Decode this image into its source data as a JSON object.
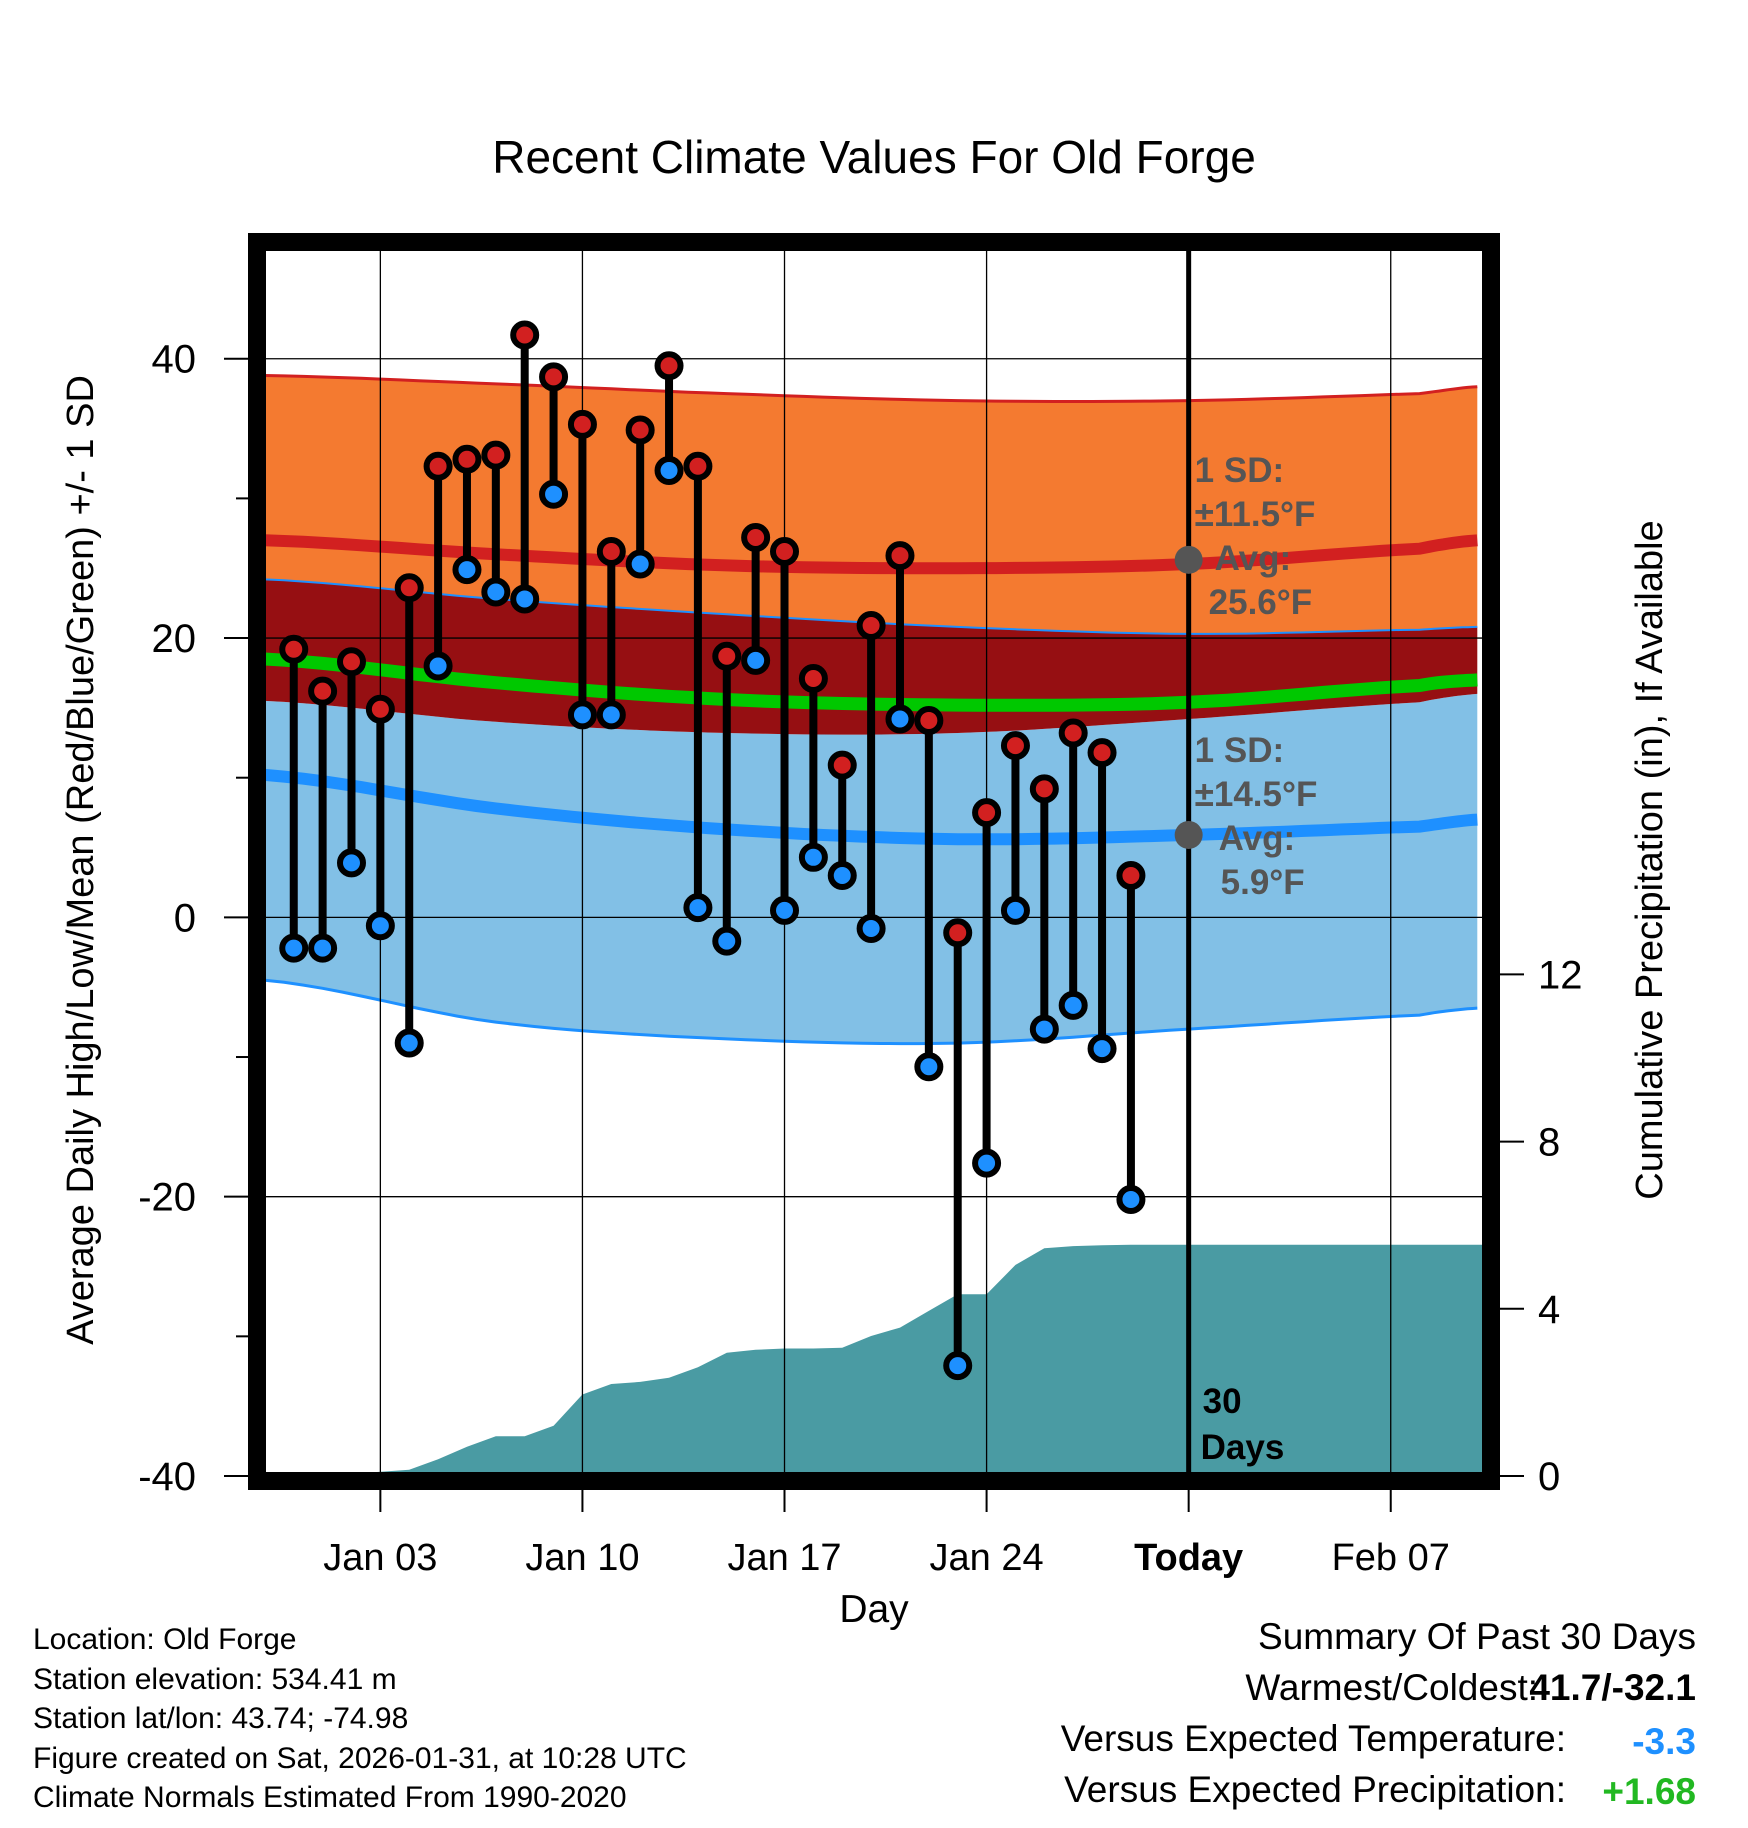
{
  "chart_data": {
    "type": "line",
    "title": "Recent Climate Values For Old Forge",
    "xlabel": "Day",
    "ylabel": "Average Daily High/Low/Mean (Red/Blue/Green) +/- 1 SD",
    "y2label": "Cumulative Precipitation (in), If Available",
    "ylim": [
      -40,
      48
    ],
    "y2lim": [
      0,
      29.4
    ],
    "xlim": [
      -2.1,
      40.3
    ],
    "x_ticks": [
      {
        "day": 2,
        "label": "Jan 03"
      },
      {
        "day": 9,
        "label": "Jan 10"
      },
      {
        "day": 16,
        "label": "Jan 17"
      },
      {
        "day": 23,
        "label": "Jan 24"
      },
      {
        "day": 30,
        "label": "Today"
      },
      {
        "day": 37,
        "label": "Feb 07"
      }
    ],
    "y_ticks": [
      "40",
      "20",
      "0",
      "-20",
      "-40"
    ],
    "y2_ticks": [
      "12",
      "8",
      "4",
      "0"
    ],
    "days": [
      -1,
      0,
      1,
      2,
      3,
      4,
      5,
      6,
      7,
      8,
      9,
      10,
      11,
      12,
      13,
      14,
      15,
      16,
      17,
      18,
      19,
      20,
      21,
      22,
      23,
      24,
      25,
      26,
      27,
      28,
      29
    ],
    "series": [
      {
        "name": "High",
        "color": "#d22020",
        "values": [
          19.2,
          16.2,
          18.3,
          14.9,
          23.6,
          32.3,
          32.8,
          33.1,
          41.7,
          38.7,
          35.3,
          26.2,
          34.9,
          39.5,
          32.3,
          18.7,
          27.2,
          26.2,
          17.1,
          10.9,
          20.9,
          25.9,
          14.1,
          -1.1,
          7.5,
          12.3,
          9.2,
          13.2,
          11.8,
          3.0,
          null
        ]
      },
      {
        "name": "Low",
        "color": "#1e90ff",
        "values": [
          -2.2,
          -2.2,
          3.9,
          -0.6,
          -9.0,
          18.0,
          24.9,
          23.3,
          22.8,
          30.3,
          14.5,
          14.5,
          25.3,
          32.0,
          0.7,
          -1.7,
          18.4,
          0.5,
          4.3,
          3.0,
          -0.8,
          14.2,
          -10.7,
          -32.1,
          -17.6,
          0.5,
          -8.0,
          -6.3,
          -9.4,
          -20.2,
          null
        ]
      }
    ],
    "normals": {
      "days": [
        -2,
        6,
        14,
        22,
        30,
        38,
        40
      ],
      "high_plus_sd": [
        38.8,
        38.2,
        37.5,
        37.0,
        37.0,
        37.5,
        38.0
      ],
      "high_avg": [
        27.0,
        26.0,
        25.2,
        25.0,
        25.3,
        26.4,
        27.0
      ],
      "high_minus_sd": [
        24.2,
        22.8,
        21.7,
        20.8,
        20.3,
        20.6,
        20.8
      ],
      "mean": [
        18.5,
        16.8,
        15.6,
        15.2,
        15.4,
        16.6,
        17.0
      ],
      "low_plus_sd": [
        15.5,
        14.0,
        13.2,
        13.2,
        14.2,
        15.4,
        16.0
      ],
      "low_avg": [
        10.2,
        7.8,
        6.3,
        5.6,
        5.9,
        6.5,
        7.0
      ],
      "low_minus_sd": [
        -4.5,
        -7.5,
        -8.7,
        -9.0,
        -8.0,
        -7.0,
        -6.5
      ]
    },
    "precip": {
      "days": [
        -2,
        -1,
        0,
        1,
        2,
        3,
        4,
        5,
        6,
        7,
        8,
        9,
        10,
        11,
        12,
        13,
        14,
        15,
        16,
        17,
        18,
        19,
        20,
        21,
        22,
        23,
        24,
        25,
        26,
        27,
        28,
        29,
        30,
        40.3
      ],
      "values": [
        0,
        0,
        0,
        0.05,
        0.1,
        0.15,
        0.4,
        0.7,
        0.95,
        0.95,
        1.2,
        1.95,
        2.2,
        2.25,
        2.35,
        2.6,
        2.95,
        3.02,
        3.05,
        3.05,
        3.07,
        3.35,
        3.55,
        3.95,
        4.35,
        4.35,
        5.05,
        5.45,
        5.5,
        5.52,
        5.53,
        5.53,
        5.53,
        5.53
      ]
    },
    "colors": {
      "high_band": "#f47a30",
      "high_line": "#d22020",
      "overlap_band": "#960f12",
      "mean_line": "#00c800",
      "low_band": "#82c0e6",
      "low_line": "#1e90ff",
      "precip_fill": "#4a9ba3",
      "annotation": "#555555"
    },
    "annotations": {
      "high_sd_label": "1 SD:",
      "high_sd_value": "±11.5°F",
      "high_avg_label": "Avg:",
      "high_avg_value": "25.6°F",
      "low_sd_label": "1 SD:",
      "low_sd_value": "±14.5°F",
      "low_avg_label": "Avg:",
      "low_avg_value": "5.9°F",
      "period_number": "30",
      "period_unit": "Days",
      "high_avg_marker_value": 25.6,
      "low_avg_marker_value": 5.9
    }
  },
  "info": {
    "location": "Location: Old Forge",
    "elevation": "Station elevation: 534.41 m",
    "latlon": "Station lat/lon: 43.74; -74.98",
    "created": "Figure created on Sat, 2026-01-31, at 10:28 UTC",
    "normals": "Climate Normals Estimated From 1990-2020"
  },
  "summary": {
    "title": "Summary Of Past 30 Days",
    "warm_cold_label": "Warmest/Coldest:",
    "warm_cold_value": "41.7/-32.1",
    "temp_label": "Versus Expected Temperature:",
    "temp_value": "-3.3",
    "temp_color": "#1e90ff",
    "precip_label": "Versus Expected Precipitation:",
    "precip_value": "+1.68",
    "precip_color": "#22b822"
  }
}
